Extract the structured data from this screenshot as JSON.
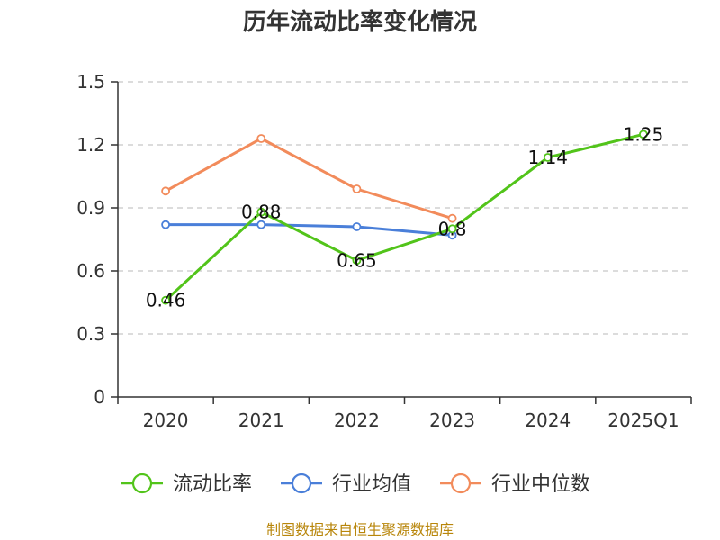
{
  "chart_data": {
    "type": "line",
    "title": "历年流动比率变化情况",
    "categories": [
      "2020",
      "2021",
      "2022",
      "2023",
      "2024",
      "2025Q1"
    ],
    "ylim": [
      0,
      1.5
    ],
    "yticks": [
      "0",
      "0.3",
      "0.6",
      "0.9",
      "1.2",
      "1.5"
    ],
    "grid": true,
    "legend_position": "bottom",
    "series": [
      {
        "name": "流动比率",
        "color": "#52c41a",
        "values": [
          0.46,
          0.88,
          0.65,
          0.8,
          1.14,
          1.25
        ],
        "labels": [
          "0.46",
          "0.88",
          "0.65",
          "0.8",
          "1.14",
          "1.25"
        ]
      },
      {
        "name": "行业均值",
        "color": "#4a7fd9",
        "values": [
          0.82,
          0.82,
          0.81,
          0.77,
          null,
          null
        ]
      },
      {
        "name": "行业中位数",
        "color": "#f28b5b",
        "values": [
          0.98,
          1.23,
          0.99,
          0.85,
          null,
          null
        ]
      }
    ]
  },
  "footer": {
    "source": "制图数据来自恒生聚源数据库"
  }
}
